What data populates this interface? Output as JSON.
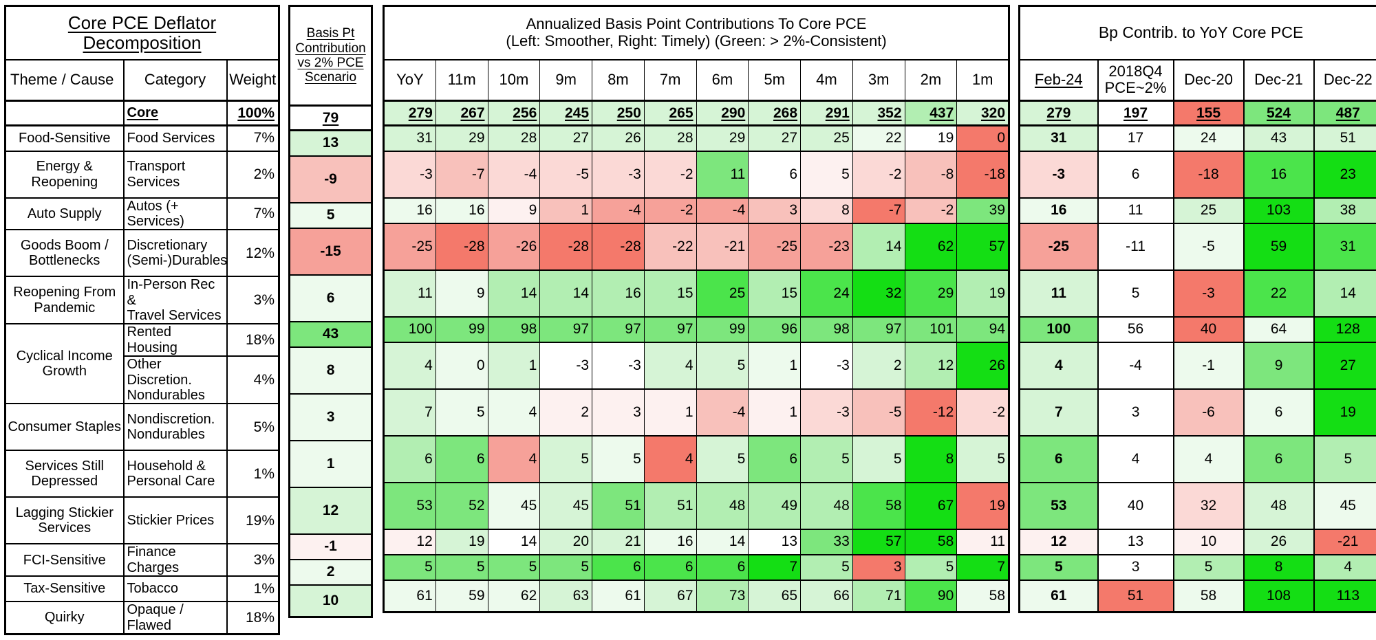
{
  "palette": {
    "g0": "#FFFFFF",
    "g1": "#EDFAED",
    "g2": "#D6F4D6",
    "g3": "#B2EEB2",
    "g4": "#7DE67D",
    "g5": "#4BE44B",
    "g6": "#14DE14",
    "r1": "#FDF1F0",
    "r2": "#FBD9D6",
    "r3": "#F8C1BB",
    "r4": "#F6A199",
    "r5": "#F4796B"
  },
  "left_table": {
    "title": "Core PCE Deflator Decomposition",
    "col_theme": "Theme / Cause",
    "col_category": "Category",
    "col_weight": "Weight"
  },
  "basis_table": {
    "header": "Basis Pt\nContribution\nvs 2% PCE\nScenario"
  },
  "middle_table": {
    "title_line1": "Annualized Basis Point Contributions To Core PCE",
    "title_line2": "(Left: Smoother, Right: Timely) (Green: > 2%-Consistent)"
  },
  "right_table": {
    "title": "Bp Contrib. to YoY Core PCE"
  },
  "chart_data": {
    "type": "heatmap",
    "title": "Core PCE Deflator Decomposition",
    "monthly_columns": [
      "YoY",
      "11m",
      "10m",
      "9m",
      "8m",
      "7m",
      "6m",
      "5m",
      "4m",
      "3m",
      "2m",
      "1m"
    ],
    "yoy_columns": [
      "Feb-24",
      "2018Q4\nPCE~2%",
      "Dec-20",
      "Dec-21",
      "Dec-22"
    ],
    "core_row": {
      "category": "Core",
      "weight": "100%",
      "basis": 79,
      "basis_tone": "g0",
      "m_v": [
        279,
        267,
        256,
        245,
        250,
        265,
        290,
        268,
        291,
        352,
        437,
        320
      ],
      "m_t": [
        "g2",
        "g2",
        "g2",
        "g2",
        "g2",
        "g2",
        "g2",
        "g2",
        "g2",
        "g2",
        "g3",
        "g2"
      ],
      "y_v": [
        279,
        197,
        155,
        524,
        487
      ],
      "y_t": [
        "g2",
        "g0",
        "r5",
        "g4",
        "g4"
      ]
    },
    "rows": [
      {
        "theme": "Food-Sensitive",
        "span": 1,
        "h": "s",
        "category": "Food Services",
        "weight": "7%",
        "basis": 13,
        "basis_tone": "g2",
        "m_v": [
          31,
          29,
          28,
          27,
          26,
          28,
          29,
          27,
          25,
          22,
          19,
          0
        ],
        "m_t": [
          "g2",
          "g2",
          "g2",
          "g2",
          "g2",
          "g2",
          "g2",
          "g2",
          "g2",
          "g1",
          "g0",
          "r5"
        ],
        "y_v": [
          31,
          17,
          24,
          43,
          51
        ],
        "y_t": [
          "g2",
          "g0",
          "g1",
          "g2",
          "g2"
        ]
      },
      {
        "theme": "Energy &\nReopening",
        "span": 1,
        "h": "t",
        "category": "Transport Services",
        "weight": "2%",
        "basis": -9,
        "basis_tone": "r3",
        "m_v": [
          -3,
          -7,
          -4,
          -5,
          -3,
          -2,
          11,
          6,
          5,
          -2,
          -8,
          -18
        ],
        "m_t": [
          "r2",
          "r3",
          "r2",
          "r2",
          "r2",
          "r2",
          "g4",
          "g0",
          "r1",
          "r2",
          "r3",
          "r5"
        ],
        "y_v": [
          -3,
          6,
          -18,
          16,
          23
        ],
        "y_t": [
          "r2",
          "g0",
          "r5",
          "g5",
          "g6"
        ]
      },
      {
        "theme": "Auto Supply",
        "span": 1,
        "h": "s",
        "category": "Autos (+ Services)",
        "weight": "7%",
        "basis": 5,
        "basis_tone": "g1",
        "m_v": [
          16,
          16,
          9,
          1,
          -4,
          -2,
          -4,
          3,
          8,
          -7,
          -2,
          39
        ],
        "m_t": [
          "g1",
          "g1",
          "r1",
          "r3",
          "r4",
          "r4",
          "r4",
          "r3",
          "r2",
          "r5",
          "r3",
          "g4"
        ],
        "y_v": [
          16,
          11,
          25,
          103,
          38
        ],
        "y_t": [
          "g1",
          "g0",
          "g2",
          "g6",
          "g3"
        ]
      },
      {
        "theme": "Goods Boom /\nBottlenecks",
        "span": 1,
        "h": "t",
        "category": "Discretionary\n(Semi-)Durables",
        "weight": "12%",
        "basis": -15,
        "basis_tone": "r4",
        "m_v": [
          -25,
          -28,
          -26,
          -28,
          -28,
          -22,
          -21,
          -25,
          -23,
          14,
          62,
          57
        ],
        "m_t": [
          "r4",
          "r5",
          "r4",
          "r5",
          "r5",
          "r3",
          "r3",
          "r4",
          "r4",
          "g3",
          "g6",
          "g6"
        ],
        "y_v": [
          -25,
          -11,
          -5,
          59,
          31
        ],
        "y_t": [
          "r4",
          "g0",
          "g1",
          "g6",
          "g5"
        ]
      },
      {
        "theme": "Reopening From\nPandemic",
        "span": 1,
        "h": "t",
        "category": "In-Person Rec &\nTravel Services",
        "weight": "3%",
        "basis": 6,
        "basis_tone": "g1",
        "m_v": [
          11,
          9,
          14,
          14,
          16,
          15,
          25,
          15,
          24,
          32,
          29,
          19
        ],
        "m_t": [
          "g2",
          "g1",
          "g3",
          "g3",
          "g3",
          "g3",
          "g5",
          "g3",
          "g5",
          "g6",
          "g5",
          "g3"
        ],
        "y_v": [
          11,
          5,
          -3,
          22,
          14
        ],
        "y_t": [
          "g2",
          "g0",
          "r5",
          "g5",
          "g3"
        ]
      },
      {
        "theme": "Cyclical Income\nGrowth",
        "span": 2,
        "h": "s",
        "category": "Rented Housing",
        "weight": "18%",
        "basis": 43,
        "basis_tone": "g4",
        "m_v": [
          100,
          99,
          98,
          97,
          97,
          97,
          99,
          96,
          98,
          97,
          101,
          94
        ],
        "m_t": [
          "g4",
          "g4",
          "g4",
          "g4",
          "g4",
          "g4",
          "g4",
          "g4",
          "g4",
          "g4",
          "g4",
          "g4"
        ],
        "y_v": [
          100,
          56,
          40,
          64,
          128
        ],
        "y_t": [
          "g4",
          "g0",
          "r5",
          "g1",
          "g6"
        ]
      },
      {
        "theme": null,
        "span": 0,
        "h": "t",
        "category": "Other Discretion.\nNondurables",
        "weight": "4%",
        "basis": 8,
        "basis_tone": "g1",
        "m_v": [
          4,
          0,
          1,
          -3,
          -3,
          4,
          5,
          1,
          -3,
          2,
          12,
          26
        ],
        "m_t": [
          "g2",
          "g1",
          "g2",
          "g0",
          "g0",
          "g2",
          "g2",
          "g1",
          "g0",
          "g2",
          "g3",
          "g6"
        ],
        "y_v": [
          4,
          -4,
          -1,
          9,
          27
        ],
        "y_t": [
          "g2",
          "g0",
          "g1",
          "g4",
          "g6"
        ]
      },
      {
        "theme": "Consumer Staples",
        "span": 1,
        "h": "t",
        "category": "Nondiscretion.\nNondurables",
        "weight": "5%",
        "basis": 3,
        "basis_tone": "g1",
        "m_v": [
          7,
          5,
          4,
          2,
          3,
          1,
          -4,
          1,
          -3,
          -5,
          -12,
          -2
        ],
        "m_t": [
          "g2",
          "g1",
          "g1",
          "r1",
          "r1",
          "r1",
          "r3",
          "r1",
          "r2",
          "r3",
          "r5",
          "r2"
        ],
        "y_v": [
          7,
          3,
          -6,
          6,
          19
        ],
        "y_t": [
          "g2",
          "g0",
          "r3",
          "g1",
          "g6"
        ]
      },
      {
        "theme": "Services Still\nDepressed",
        "span": 1,
        "h": "t",
        "category": "Household &\nPersonal Care",
        "weight": "1%",
        "basis": 1,
        "basis_tone": "g1",
        "m_v": [
          6,
          6,
          4,
          5,
          5,
          4,
          5,
          6,
          5,
          5,
          8,
          5
        ],
        "m_t": [
          "g3",
          "g4",
          "r4",
          "g2",
          "g1",
          "r5",
          "g2",
          "g4",
          "g3",
          "g2",
          "g6",
          "g2"
        ],
        "y_v": [
          6,
          4,
          4,
          6,
          5
        ],
        "y_t": [
          "g4",
          "g0",
          "g1",
          "g4",
          "g3"
        ]
      },
      {
        "theme": "Lagging Stickier\nServices",
        "span": 1,
        "h": "t",
        "category": "Stickier Prices",
        "weight": "19%",
        "basis": 12,
        "basis_tone": "g2",
        "m_v": [
          53,
          52,
          45,
          45,
          51,
          51,
          48,
          49,
          48,
          58,
          67,
          19
        ],
        "m_t": [
          "g4",
          "g4",
          "g1",
          "g2",
          "g4",
          "g3",
          "g3",
          "g3",
          "g3",
          "g5",
          "g6",
          "r5"
        ],
        "y_v": [
          53,
          40,
          32,
          48,
          45
        ],
        "y_t": [
          "g4",
          "g0",
          "r2",
          "g2",
          "g1"
        ]
      },
      {
        "theme": "FCI-Sensitive",
        "span": 1,
        "h": "s",
        "category": "Finance Charges",
        "weight": "3%",
        "basis": -1,
        "basis_tone": "r1",
        "m_v": [
          12,
          19,
          14,
          20,
          21,
          16,
          14,
          13,
          33,
          57,
          58,
          11
        ],
        "m_t": [
          "r1",
          "g2",
          "g0",
          "g2",
          "g2",
          "g1",
          "g1",
          "g0",
          "g4",
          "g6",
          "g6",
          "r1"
        ],
        "y_v": [
          12,
          13,
          10,
          26,
          -21
        ],
        "y_t": [
          "r1",
          "g0",
          "r1",
          "g2",
          "r5"
        ]
      },
      {
        "theme": "Tax-Sensitive",
        "span": 1,
        "h": "s",
        "category": "Tobacco",
        "weight": "1%",
        "basis": 2,
        "basis_tone": "g1",
        "m_v": [
          5,
          5,
          5,
          5,
          6,
          6,
          6,
          7,
          5,
          3,
          5,
          7
        ],
        "m_t": [
          "g4",
          "g4",
          "g4",
          "g4",
          "g5",
          "g5",
          "g5",
          "g6",
          "g3",
          "r5",
          "g3",
          "g6"
        ],
        "y_v": [
          5,
          3,
          5,
          8,
          4
        ],
        "y_t": [
          "g4",
          "g0",
          "g3",
          "g6",
          "g3"
        ]
      },
      {
        "theme": "Quirky",
        "span": 1,
        "h": "q",
        "category": "Opaque / Flawed",
        "weight": "18%",
        "basis": 10,
        "basis_tone": "g2",
        "m_v": [
          61,
          59,
          62,
          63,
          61,
          67,
          73,
          65,
          66,
          71,
          90,
          58
        ],
        "m_t": [
          "g1",
          "g1",
          "g1",
          "g2",
          "g1",
          "g2",
          "g3",
          "g2",
          "g2",
          "g3",
          "g5",
          "g1"
        ],
        "y_v": [
          61,
          51,
          58,
          108,
          113
        ],
        "y_t": [
          "g1",
          "r5",
          "g1",
          "g6",
          "g6"
        ]
      }
    ]
  }
}
